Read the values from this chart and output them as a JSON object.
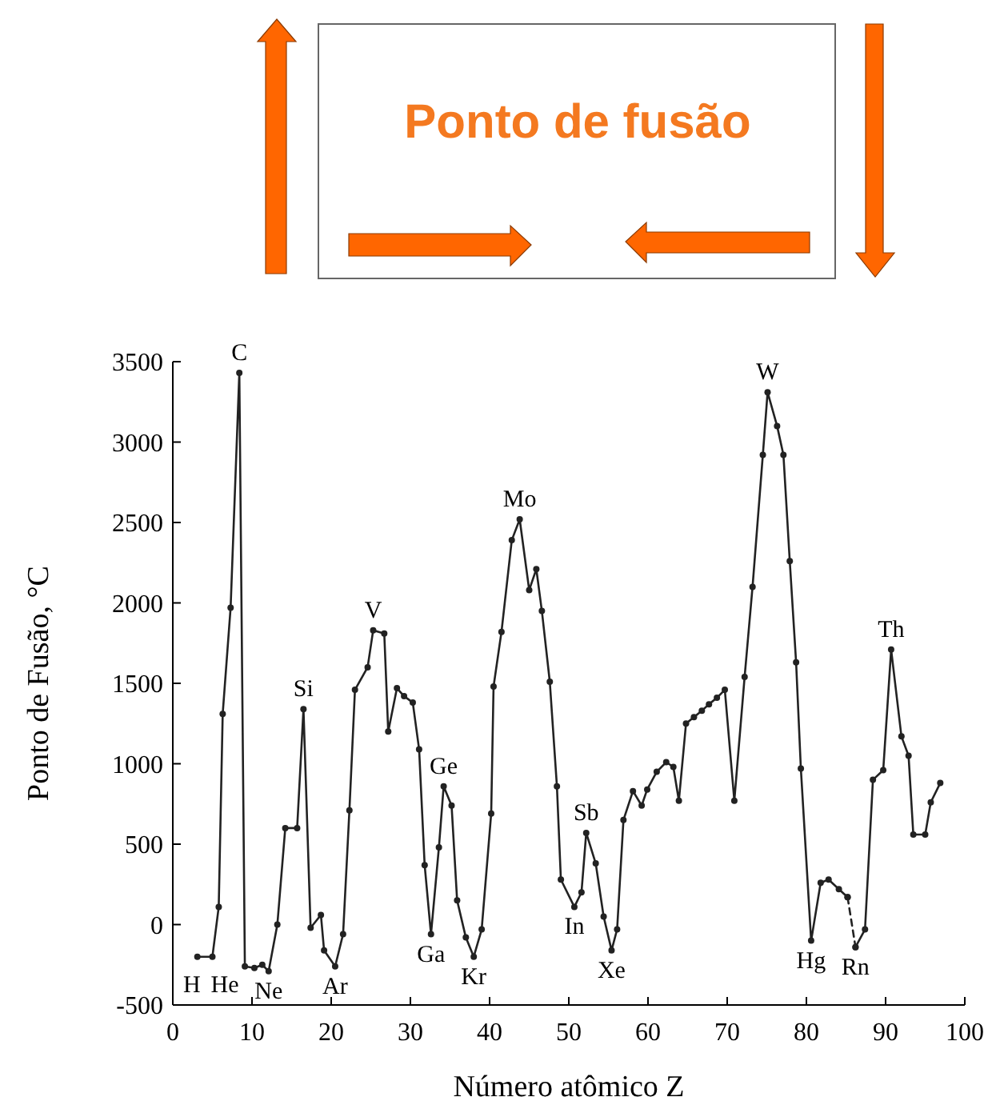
{
  "chart_data": {
    "type": "line",
    "title": "Ponto de fusão",
    "xlabel": "Número atômico Z",
    "ylabel": "Ponto de Fusão, °C",
    "xlim": [
      0,
      100
    ],
    "xticks": [
      0,
      10,
      20,
      30,
      40,
      50,
      60,
      70,
      80,
      90,
      100
    ],
    "ylim": [
      -500,
      3500
    ],
    "yticks": [
      -500,
      0,
      500,
      1000,
      1500,
      2000,
      2500,
      3000,
      3500
    ],
    "grid": false,
    "marker": "circle",
    "series": [
      {
        "color": "#222222",
        "line_style": "solid",
        "x": [
          3.1,
          5.0,
          5.8,
          6.3,
          7.3,
          8.4,
          9.1,
          10.3,
          11.3,
          12.1,
          13.2,
          14.2,
          15.7,
          16.5,
          17.4,
          18.7,
          19.1,
          20.5,
          21.5,
          22.3,
          23.0,
          24.6,
          25.3,
          26.7,
          27.2,
          28.3,
          29.2,
          30.3,
          31.1,
          31.8,
          32.6,
          33.6,
          34.2,
          35.2,
          35.9,
          37.0,
          38.0,
          39.0,
          40.2,
          40.5,
          41.5,
          42.8,
          43.8,
          45.0,
          45.9,
          46.6,
          47.6,
          48.5,
          49.0,
          50.7,
          51.6,
          52.2,
          53.4,
          54.4,
          55.4,
          56.1,
          56.9,
          58.1,
          59.2,
          59.9,
          61.1,
          62.3,
          63.2,
          63.9,
          64.8,
          65.8,
          66.8,
          67.7,
          68.7,
          69.7,
          70.9,
          72.2,
          73.2,
          74.5,
          75.1,
          76.3,
          77.1,
          77.9,
          78.7,
          79.3,
          80.6,
          81.8,
          82.8,
          84.1,
          85.2
        ],
        "values": [
          -200,
          -200,
          110,
          1310,
          1970,
          3430,
          -260,
          -270,
          -250,
          -290,
          0,
          600,
          600,
          1340,
          -20,
          60,
          -160,
          -260,
          -60,
          710,
          1460,
          1600,
          1830,
          1810,
          1200,
          1470,
          1420,
          1380,
          1090,
          370,
          -60,
          480,
          860,
          740,
          150,
          -80,
          -200,
          -30,
          690,
          1480,
          1820,
          2390,
          2520,
          2080,
          2210,
          1950,
          1510,
          860,
          280,
          110,
          200,
          570,
          380,
          50,
          -160,
          -30,
          650,
          830,
          740,
          840,
          950,
          1010,
          980,
          770,
          1250,
          1290,
          1330,
          1370,
          1410,
          1460,
          770,
          1540,
          2100,
          2920,
          3310,
          3100,
          2920,
          2260,
          1630,
          970,
          -100,
          260,
          280,
          220,
          170
        ]
      },
      {
        "color": "#222222",
        "line_style": "dashed",
        "x": [
          85.2,
          86.2
        ],
        "values": [
          170,
          -140
        ]
      },
      {
        "color": "#222222",
        "line_style": "solid",
        "x": [
          86.2,
          87.4,
          88.4,
          89.7,
          90.7,
          92.0,
          92.9,
          93.5,
          95.0,
          95.7,
          96.9
        ],
        "values": [
          -140,
          -30,
          900,
          960,
          1710,
          1170,
          1050,
          560,
          560,
          760,
          880
        ]
      }
    ],
    "annotations": [
      {
        "text": "H",
        "x": 3.1,
        "y": -200
      },
      {
        "text": "He",
        "x": 5.0,
        "y": -200
      },
      {
        "text": "C",
        "x": 8.4,
        "y": 3430
      },
      {
        "text": "Ne",
        "x": 12.1,
        "y": -290
      },
      {
        "text": "Si",
        "x": 16.5,
        "y": 1340
      },
      {
        "text": "Ar",
        "x": 20.5,
        "y": -260
      },
      {
        "text": "V",
        "x": 25.3,
        "y": 1830
      },
      {
        "text": "Ga",
        "x": 32.6,
        "y": -60
      },
      {
        "text": "Ge",
        "x": 34.2,
        "y": 860
      },
      {
        "text": "Kr",
        "x": 38.0,
        "y": -200
      },
      {
        "text": "Mo",
        "x": 43.8,
        "y": 2520
      },
      {
        "text": "In",
        "x": 50.7,
        "y": 110
      },
      {
        "text": "Sb",
        "x": 52.2,
        "y": 570
      },
      {
        "text": "Xe",
        "x": 55.4,
        "y": -160
      },
      {
        "text": "W",
        "x": 75.1,
        "y": 3310
      },
      {
        "text": "Hg",
        "x": 80.6,
        "y": -100
      },
      {
        "text": "Rn",
        "x": 86.2,
        "y": -140
      },
      {
        "text": "Th",
        "x": 90.7,
        "y": 1710
      }
    ]
  }
}
